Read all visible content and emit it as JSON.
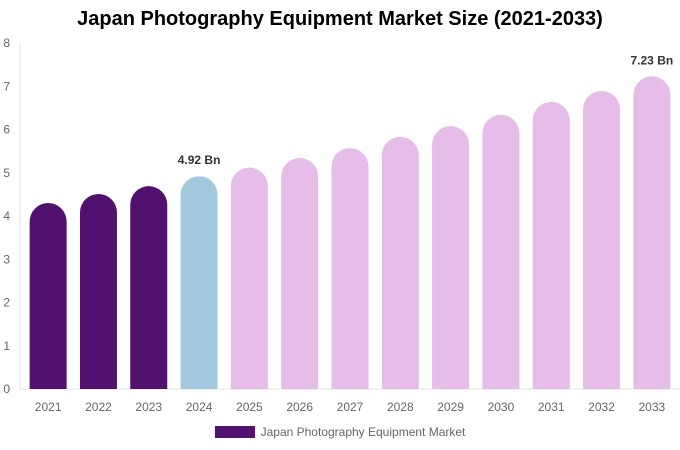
{
  "chart_data": {
    "type": "bar",
    "title": "Japan Photography Equipment Market Size (2021-2033)",
    "categories": [
      "2021",
      "2022",
      "2023",
      "2024",
      "2025",
      "2026",
      "2027",
      "2028",
      "2029",
      "2030",
      "2031",
      "2032",
      "2033"
    ],
    "series": [
      {
        "name": "Japan Photography Equipment Market",
        "values": [
          4.3,
          4.51,
          4.69,
          4.92,
          5.12,
          5.34,
          5.57,
          5.83,
          6.08,
          6.34,
          6.64,
          6.89,
          7.23
        ]
      }
    ],
    "data_labels": [
      {
        "index": 3,
        "text": "4.92 Bn"
      },
      {
        "index": 12,
        "text": "7.23 Bn"
      }
    ],
    "ylim": [
      0,
      8
    ],
    "yticks": [
      0,
      1,
      2,
      3,
      4,
      5,
      6,
      7,
      8
    ],
    "grid": false,
    "legend_placement": "bottom",
    "colors": {
      "historical": "#52116f",
      "current": "#a3c9de",
      "forecast": "#e6bde9"
    }
  }
}
